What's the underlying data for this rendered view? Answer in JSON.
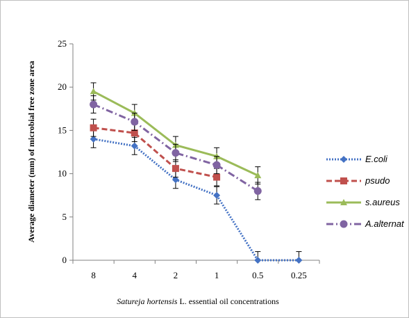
{
  "chart_data": {
    "type": "line",
    "categories": [
      "8",
      "4",
      "2",
      "1",
      "0.5",
      "0.25"
    ],
    "ylim": [
      0,
      25
    ],
    "yticks": [
      0,
      5,
      10,
      15,
      20,
      25
    ],
    "ylabel": "Average diameter (mm) of microbial free zone area",
    "xlabel_italic": "Satureja hortensis",
    "xlabel_rest": " L. essential oil concentrations",
    "grid": false,
    "legend_position": "right",
    "series": [
      {
        "name": "E.coli",
        "color": "#4472c4",
        "dash": "2,2",
        "marker": "diamond",
        "values": [
          14,
          13.2,
          9.3,
          7.5,
          0,
          0
        ],
        "errors": [
          1,
          1,
          1,
          1,
          1,
          1
        ]
      },
      {
        "name": "psudo",
        "color": "#c0504d",
        "dash": "8,4",
        "marker": "square",
        "values": [
          15.3,
          14.7,
          10.6,
          9.6,
          null,
          null
        ],
        "errors": [
          1,
          1,
          1,
          1,
          null,
          null
        ]
      },
      {
        "name": "s.aureus",
        "color": "#9bbb59",
        "dash": "",
        "marker": "triangle",
        "values": [
          19.5,
          17,
          13.3,
          12,
          9.8,
          null
        ],
        "errors": [
          1,
          1,
          1,
          1,
          1,
          null
        ]
      },
      {
        "name": "A.alternat",
        "color": "#8064a2",
        "dash": "10,4,2,4",
        "marker": "circle",
        "values": [
          18,
          16,
          12.4,
          11,
          8,
          null
        ],
        "errors": [
          1,
          1,
          1,
          1,
          1,
          null
        ]
      }
    ]
  }
}
